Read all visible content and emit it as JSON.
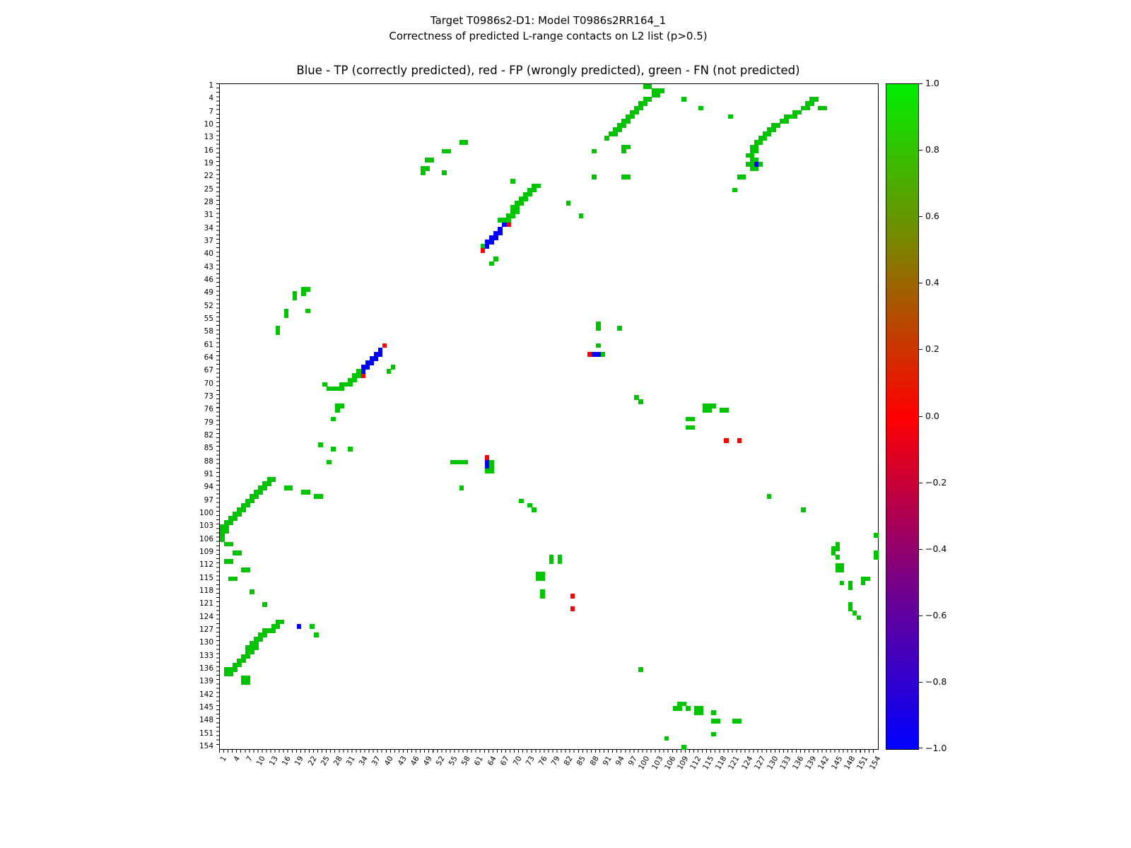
{
  "figure": {
    "suptitle_line1": "Target T0986s2-D1: Model T0986s2RR164_1",
    "suptitle_line2": "Correctness of predicted L-range contacts on L2 list (p>0.5)"
  },
  "chart_data": {
    "type": "heatmap",
    "title": "Blue - TP (correctly predicted), red - FP (wrongly predicted), green - FN (not predicted)",
    "grid": false,
    "axis": {
      "x_min": 1,
      "x_max": 154,
      "y_min": 1,
      "y_max": 154,
      "y_direction": "top-to-bottom",
      "tick_step": 3,
      "tick_labels": [
        1,
        4,
        7,
        10,
        13,
        16,
        19,
        22,
        25,
        28,
        31,
        34,
        37,
        40,
        43,
        46,
        49,
        52,
        55,
        58,
        61,
        64,
        67,
        70,
        73,
        76,
        79,
        82,
        85,
        88,
        91,
        94,
        97,
        100,
        103,
        106,
        109,
        112,
        115,
        118,
        121,
        124,
        127,
        130,
        133,
        136,
        139,
        142,
        145,
        148,
        151,
        154
      ]
    },
    "colorbar": {
      "position": "right",
      "tick_labels": [
        "1.0",
        "0.8",
        "0.6",
        "0.4",
        "0.2",
        "0.0",
        "−0.2",
        "−0.4",
        "−0.6",
        "−0.8",
        "−1.0"
      ],
      "value_top": 1.0,
      "value_bottom": -1.0,
      "gradient_stops": [
        {
          "pos": 0.0,
          "color": "#00ee00"
        },
        {
          "pos": 0.25,
          "color": "#808000"
        },
        {
          "pos": 0.5,
          "color": "#ff0000"
        },
        {
          "pos": 0.75,
          "color": "#770088"
        },
        {
          "pos": 1.0,
          "color": "#0000ff"
        }
      ]
    },
    "classes": {
      "FN": {
        "label": "FN (not predicted)",
        "color": "#00c400",
        "value": 1.0
      },
      "FP": {
        "label": "FP (wrongly predicted)",
        "color": "#ff0000",
        "value": 0.0
      },
      "TP": {
        "label": "TP (correctly predicted)",
        "color": "#0000ff",
        "value": -1.0
      }
    },
    "points": {
      "FN": [
        [
          100,
          1
        ],
        [
          101,
          1
        ],
        [
          102,
          2
        ],
        [
          103,
          2
        ],
        [
          104,
          2
        ],
        [
          102,
          3
        ],
        [
          103,
          3
        ],
        [
          100,
          4
        ],
        [
          101,
          4
        ],
        [
          99,
          5
        ],
        [
          100,
          5
        ],
        [
          98,
          6
        ],
        [
          99,
          6
        ],
        [
          97,
          7
        ],
        [
          98,
          7
        ],
        [
          96,
          8
        ],
        [
          97,
          8
        ],
        [
          95,
          9
        ],
        [
          96,
          9
        ],
        [
          94,
          10
        ],
        [
          95,
          10
        ],
        [
          93,
          11
        ],
        [
          94,
          11
        ],
        [
          92,
          12
        ],
        [
          93,
          12
        ],
        [
          109,
          4
        ],
        [
          113,
          6
        ],
        [
          120,
          8
        ],
        [
          91,
          13
        ],
        [
          95,
          15
        ],
        [
          96,
          15
        ],
        [
          88,
          16
        ],
        [
          95,
          16
        ],
        [
          88,
          22
        ],
        [
          95,
          22
        ],
        [
          96,
          22
        ],
        [
          82,
          28
        ],
        [
          85,
          31
        ],
        [
          139,
          4
        ],
        [
          140,
          4
        ],
        [
          138,
          5
        ],
        [
          139,
          5
        ],
        [
          137,
          6
        ],
        [
          138,
          6
        ],
        [
          141,
          6
        ],
        [
          142,
          6
        ],
        [
          135,
          7
        ],
        [
          136,
          7
        ],
        [
          133,
          8
        ],
        [
          134,
          8
        ],
        [
          135,
          8
        ],
        [
          132,
          9
        ],
        [
          133,
          9
        ],
        [
          130,
          10
        ],
        [
          131,
          10
        ],
        [
          129,
          11
        ],
        [
          130,
          11
        ],
        [
          128,
          12
        ],
        [
          129,
          12
        ],
        [
          127,
          13
        ],
        [
          128,
          13
        ],
        [
          126,
          14
        ],
        [
          127,
          14
        ],
        [
          125,
          15
        ],
        [
          126,
          15
        ],
        [
          125,
          16
        ],
        [
          126,
          16
        ],
        [
          124,
          17
        ],
        [
          125,
          17
        ],
        [
          125,
          18
        ],
        [
          126,
          18
        ],
        [
          124,
          19
        ],
        [
          125,
          19
        ],
        [
          127,
          19
        ],
        [
          125,
          20
        ],
        [
          126,
          20
        ],
        [
          122,
          22
        ],
        [
          123,
          22
        ],
        [
          121,
          25
        ],
        [
          57,
          14
        ],
        [
          58,
          14
        ],
        [
          53,
          16
        ],
        [
          54,
          16
        ],
        [
          49,
          18
        ],
        [
          50,
          18
        ],
        [
          48,
          20
        ],
        [
          49,
          20
        ],
        [
          48,
          21
        ],
        [
          53,
          21
        ],
        [
          14,
          57
        ],
        [
          14,
          58
        ],
        [
          16,
          53
        ],
        [
          16,
          54
        ],
        [
          18,
          49
        ],
        [
          18,
          50
        ],
        [
          20,
          48
        ],
        [
          20,
          49
        ],
        [
          21,
          48
        ],
        [
          21,
          53
        ],
        [
          69,
          23
        ],
        [
          74,
          24
        ],
        [
          75,
          24
        ],
        [
          73,
          25
        ],
        [
          74,
          25
        ],
        [
          72,
          26
        ],
        [
          73,
          26
        ],
        [
          71,
          27
        ],
        [
          72,
          27
        ],
        [
          70,
          28
        ],
        [
          71,
          28
        ],
        [
          69,
          29
        ],
        [
          70,
          29
        ],
        [
          69,
          30
        ],
        [
          70,
          30
        ],
        [
          68,
          31
        ],
        [
          69,
          31
        ],
        [
          66,
          32
        ],
        [
          67,
          32
        ],
        [
          68,
          32
        ],
        [
          62,
          38
        ],
        [
          65,
          41
        ],
        [
          64,
          42
        ],
        [
          41,
          66
        ],
        [
          40,
          67
        ],
        [
          33,
          67
        ],
        [
          33,
          68
        ],
        [
          32,
          68
        ],
        [
          32,
          69
        ],
        [
          31,
          69
        ],
        [
          31,
          70
        ],
        [
          30,
          70
        ],
        [
          29,
          70
        ],
        [
          29,
          71
        ],
        [
          28,
          71
        ],
        [
          27,
          71
        ],
        [
          26,
          71
        ],
        [
          25,
          70
        ],
        [
          28,
          75
        ],
        [
          29,
          75
        ],
        [
          28,
          76
        ],
        [
          27,
          78
        ],
        [
          24,
          84
        ],
        [
          27,
          85
        ],
        [
          31,
          85
        ],
        [
          26,
          88
        ],
        [
          89,
          56
        ],
        [
          89,
          57
        ],
        [
          94,
          57
        ],
        [
          89,
          61
        ],
        [
          90,
          63
        ],
        [
          55,
          88
        ],
        [
          56,
          88
        ],
        [
          57,
          88
        ],
        [
          58,
          88
        ],
        [
          64,
          88
        ],
        [
          64,
          89
        ],
        [
          63,
          90
        ],
        [
          64,
          90
        ],
        [
          57,
          94
        ],
        [
          12,
          92
        ],
        [
          13,
          92
        ],
        [
          11,
          93
        ],
        [
          12,
          93
        ],
        [
          10,
          94
        ],
        [
          11,
          94
        ],
        [
          9,
          95
        ],
        [
          10,
          95
        ],
        [
          8,
          96
        ],
        [
          9,
          96
        ],
        [
          7,
          97
        ],
        [
          8,
          97
        ],
        [
          6,
          98
        ],
        [
          7,
          98
        ],
        [
          5,
          99
        ],
        [
          6,
          99
        ],
        [
          4,
          100
        ],
        [
          5,
          100
        ],
        [
          3,
          101
        ],
        [
          4,
          101
        ],
        [
          2,
          102
        ],
        [
          3,
          102
        ],
        [
          1,
          103
        ],
        [
          2,
          103
        ],
        [
          1,
          104
        ],
        [
          2,
          104
        ],
        [
          1,
          105
        ],
        [
          16,
          94
        ],
        [
          17,
          94
        ],
        [
          20,
          95
        ],
        [
          21,
          95
        ],
        [
          23,
          96
        ],
        [
          24,
          96
        ],
        [
          1,
          106
        ],
        [
          2,
          107
        ],
        [
          3,
          107
        ],
        [
          4,
          109
        ],
        [
          5,
          109
        ],
        [
          2,
          111
        ],
        [
          3,
          111
        ],
        [
          6,
          113
        ],
        [
          7,
          113
        ],
        [
          3,
          115
        ],
        [
          4,
          115
        ],
        [
          8,
          118
        ],
        [
          11,
          121
        ],
        [
          14,
          125
        ],
        [
          15,
          125
        ],
        [
          13,
          126
        ],
        [
          14,
          126
        ],
        [
          22,
          126
        ],
        [
          12,
          127
        ],
        [
          13,
          127
        ],
        [
          11,
          127
        ],
        [
          10,
          128
        ],
        [
          11,
          128
        ],
        [
          23,
          128
        ],
        [
          9,
          129
        ],
        [
          10,
          129
        ],
        [
          8,
          130
        ],
        [
          9,
          130
        ],
        [
          7,
          131
        ],
        [
          8,
          131
        ],
        [
          9,
          131
        ],
        [
          7,
          132
        ],
        [
          8,
          132
        ],
        [
          6,
          133
        ],
        [
          7,
          133
        ],
        [
          5,
          134
        ],
        [
          6,
          134
        ],
        [
          4,
          135
        ],
        [
          5,
          135
        ],
        [
          2,
          136
        ],
        [
          3,
          136
        ],
        [
          4,
          136
        ],
        [
          2,
          137
        ],
        [
          3,
          137
        ],
        [
          6,
          138
        ],
        [
          7,
          138
        ],
        [
          6,
          139
        ],
        [
          7,
          139
        ],
        [
          99,
          136
        ],
        [
          105,
          152
        ],
        [
          109,
          154
        ],
        [
          137,
          99
        ],
        [
          129,
          96
        ],
        [
          154,
          105
        ],
        [
          154,
          109
        ],
        [
          154,
          110
        ],
        [
          98,
          73
        ],
        [
          99,
          74
        ],
        [
          114,
          75
        ],
        [
          115,
          75
        ],
        [
          116,
          75
        ],
        [
          114,
          76
        ],
        [
          115,
          76
        ],
        [
          118,
          76
        ],
        [
          119,
          76
        ],
        [
          110,
          78
        ],
        [
          111,
          78
        ],
        [
          110,
          80
        ],
        [
          111,
          80
        ],
        [
          71,
          97
        ],
        [
          73,
          98
        ],
        [
          74,
          99
        ],
        [
          78,
          110
        ],
        [
          78,
          111
        ],
        [
          80,
          110
        ],
        [
          80,
          111
        ],
        [
          75,
          114
        ],
        [
          76,
          114
        ],
        [
          75,
          115
        ],
        [
          76,
          115
        ],
        [
          76,
          118
        ],
        [
          76,
          119
        ],
        [
          108,
          144
        ],
        [
          109,
          144
        ],
        [
          107,
          145
        ],
        [
          108,
          145
        ],
        [
          110,
          145
        ],
        [
          112,
          145
        ],
        [
          113,
          145
        ],
        [
          112,
          146
        ],
        [
          113,
          146
        ],
        [
          116,
          146
        ],
        [
          116,
          148
        ],
        [
          117,
          148
        ],
        [
          121,
          148
        ],
        [
          122,
          148
        ],
        [
          116,
          151
        ],
        [
          145,
          107
        ],
        [
          144,
          108
        ],
        [
          145,
          108
        ],
        [
          144,
          109
        ],
        [
          145,
          110
        ],
        [
          145,
          112
        ],
        [
          146,
          112
        ],
        [
          145,
          113
        ],
        [
          146,
          113
        ],
        [
          151,
          115
        ],
        [
          152,
          115
        ],
        [
          146,
          116
        ],
        [
          148,
          116
        ],
        [
          151,
          116
        ],
        [
          148,
          117
        ],
        [
          148,
          121
        ],
        [
          148,
          122
        ],
        [
          149,
          123
        ],
        [
          150,
          124
        ]
      ],
      "FP": [
        [
          68,
          33
        ],
        [
          62,
          39
        ],
        [
          39,
          61
        ],
        [
          34,
          68
        ],
        [
          87,
          63
        ],
        [
          63,
          87
        ],
        [
          119,
          83
        ],
        [
          122,
          83
        ],
        [
          83,
          119
        ],
        [
          83,
          122
        ]
      ],
      "TP": [
        [
          67,
          33
        ],
        [
          66,
          34
        ],
        [
          66,
          35
        ],
        [
          65,
          35
        ],
        [
          65,
          36
        ],
        [
          64,
          36
        ],
        [
          64,
          37
        ],
        [
          63,
          37
        ],
        [
          63,
          38
        ],
        [
          38,
          62
        ],
        [
          38,
          63
        ],
        [
          37,
          63
        ],
        [
          37,
          64
        ],
        [
          36,
          64
        ],
        [
          36,
          65
        ],
        [
          35,
          65
        ],
        [
          35,
          66
        ],
        [
          34,
          66
        ],
        [
          34,
          67
        ],
        [
          88,
          63
        ],
        [
          89,
          63
        ],
        [
          63,
          88
        ],
        [
          63,
          89
        ],
        [
          126,
          19
        ],
        [
          19,
          126
        ]
      ]
    }
  }
}
